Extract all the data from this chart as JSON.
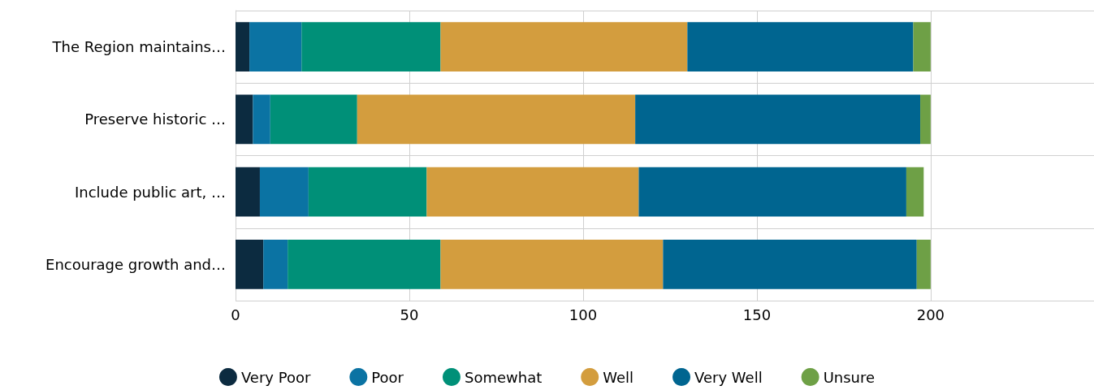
{
  "chart_data": {
    "type": "bar",
    "orientation": "horizontal",
    "stacked": true,
    "categories": [
      "The Region maintains…",
      "Preserve historic …",
      "Include public art, …",
      "Encourage growth and…"
    ],
    "series": [
      {
        "name": "Very Poor",
        "color": "#0c2b40",
        "values": [
          4,
          5,
          7,
          8
        ]
      },
      {
        "name": "Poor",
        "color": "#0b73a3",
        "values": [
          15,
          5,
          14,
          7
        ]
      },
      {
        "name": "Somewhat",
        "color": "#009078",
        "values": [
          40,
          25,
          34,
          44
        ]
      },
      {
        "name": "Well",
        "color": "#d39d3e",
        "values": [
          71,
          80,
          61,
          64
        ]
      },
      {
        "name": "Very Well",
        "color": "#006590",
        "values": [
          65,
          82,
          77,
          73
        ]
      },
      {
        "name": "Unsure",
        "color": "#6ea046",
        "values": [
          5,
          3,
          5,
          4
        ]
      }
    ],
    "xlim": [
      0,
      247
    ],
    "xticks": [
      0,
      50,
      100,
      150,
      200
    ],
    "grid": true,
    "legend": "bottom"
  }
}
